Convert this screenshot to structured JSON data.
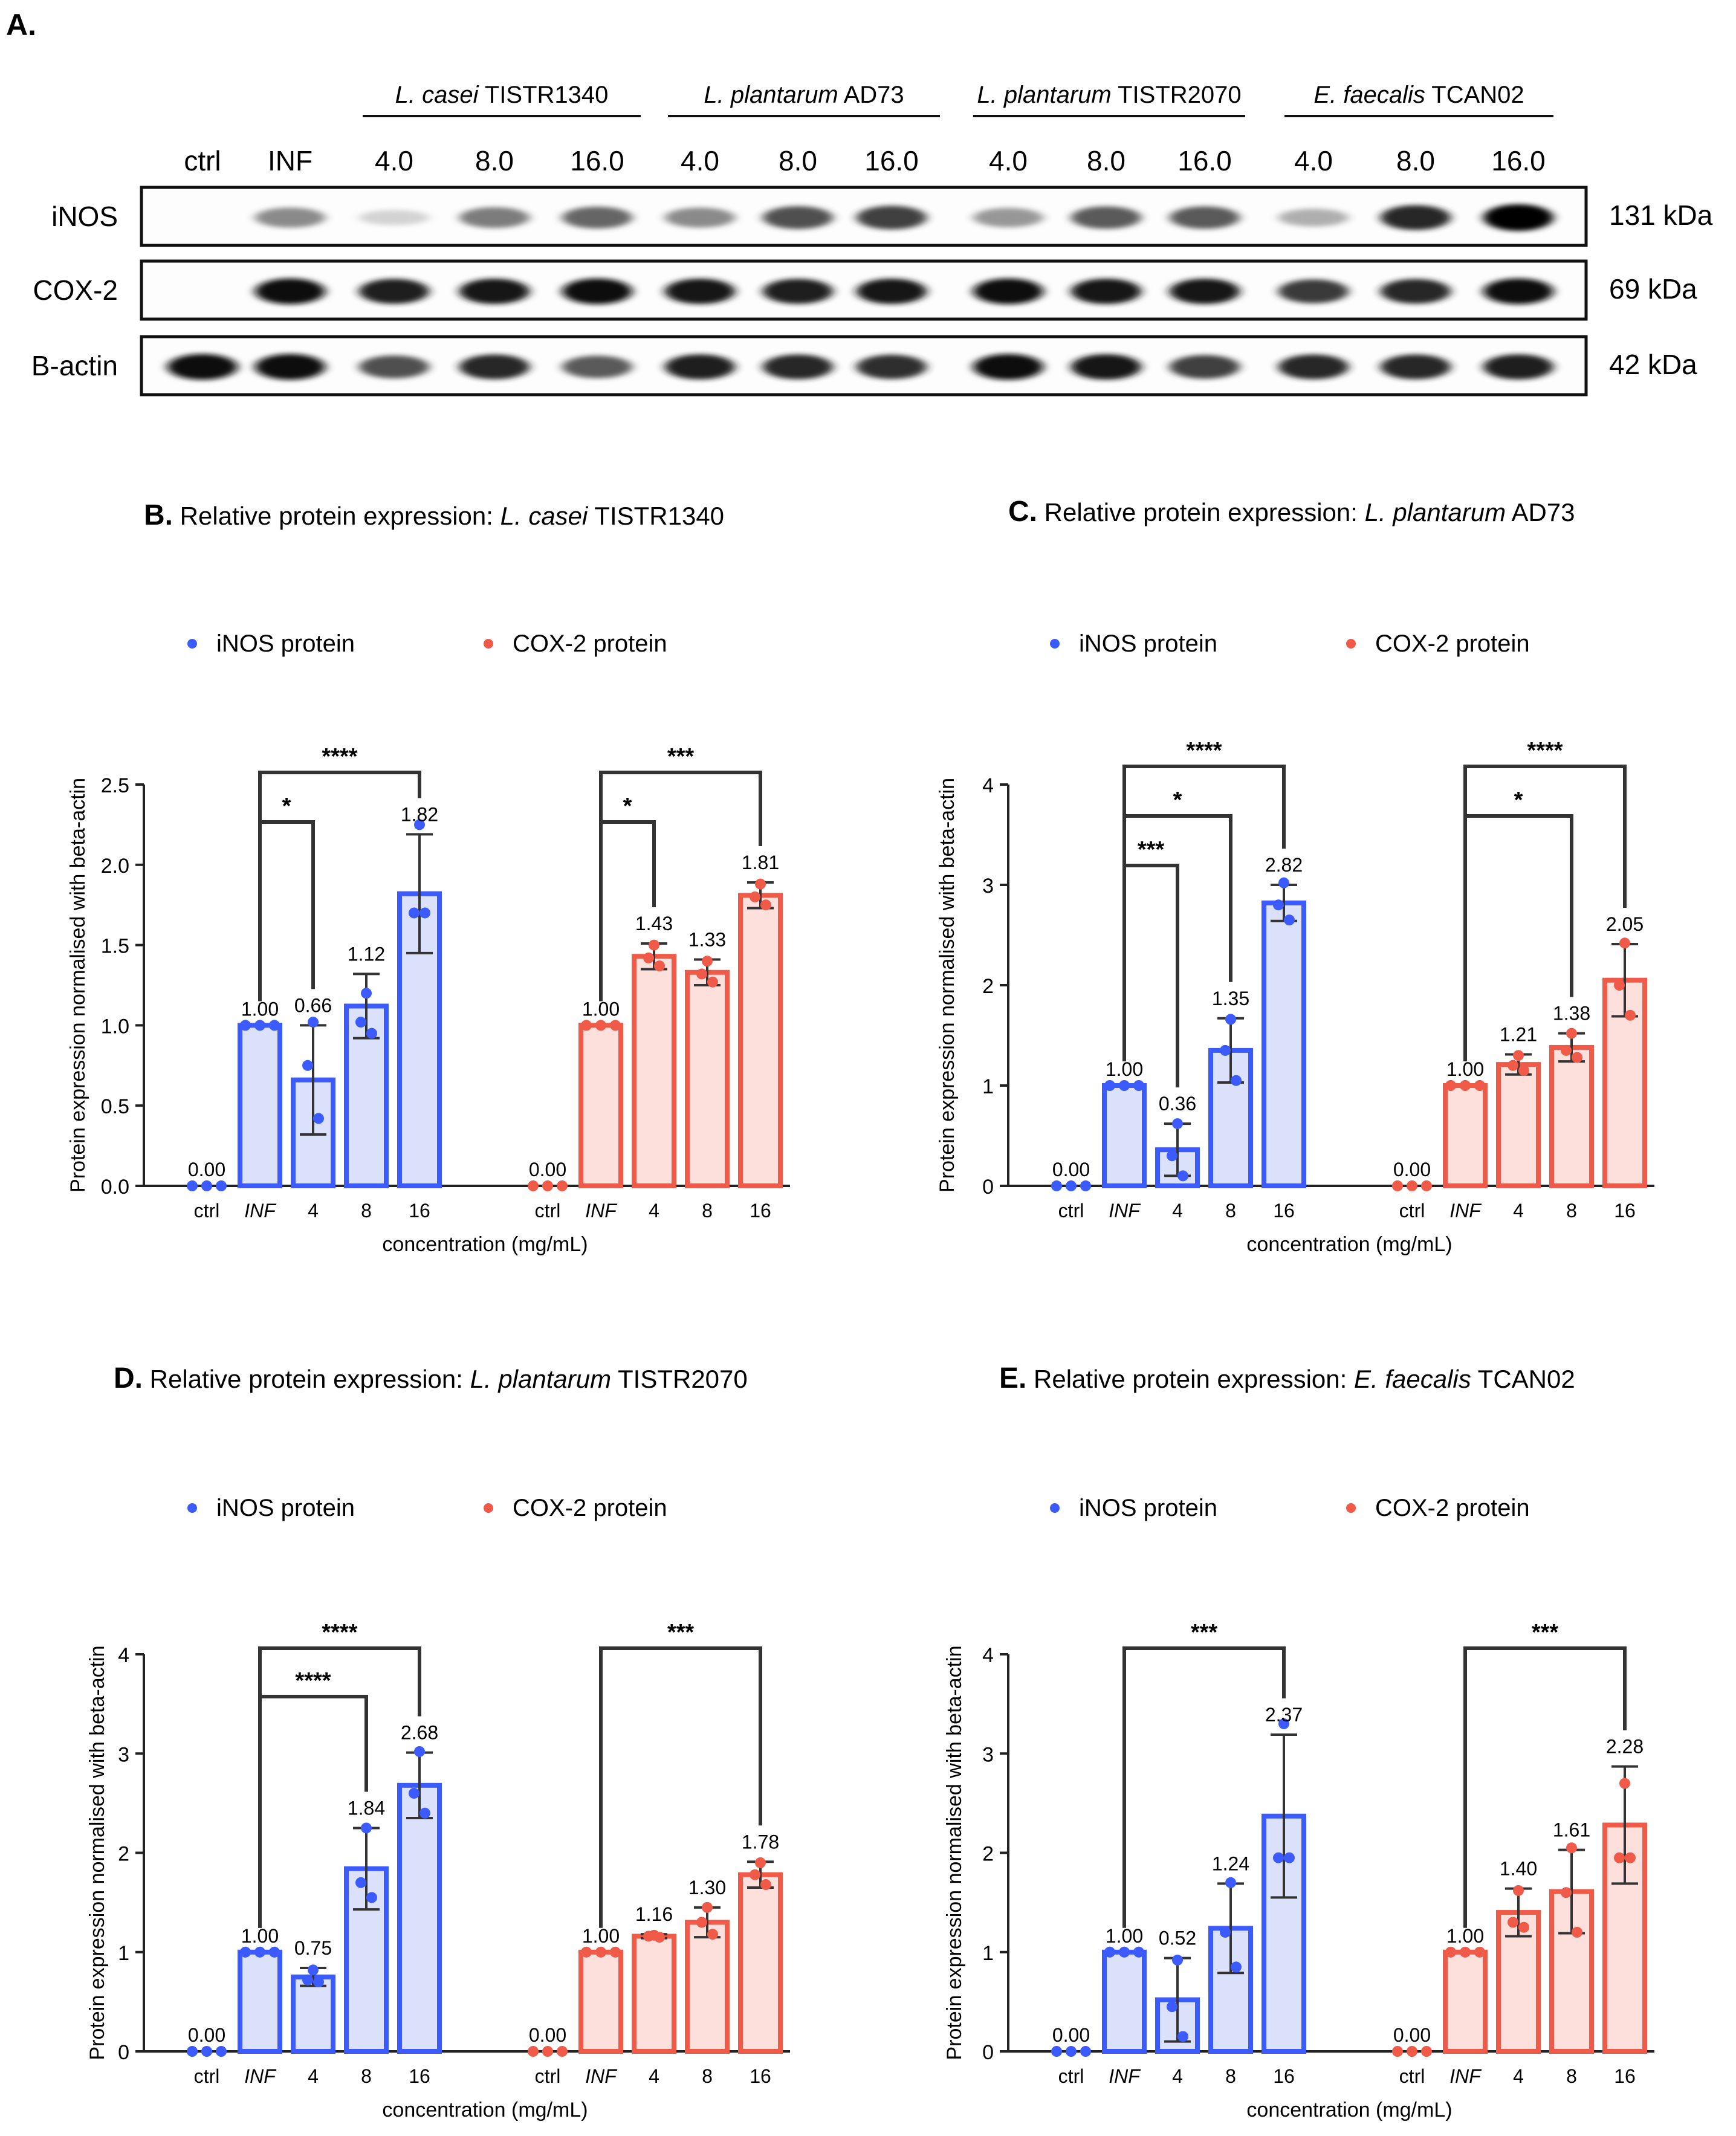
{
  "panel_a": {
    "label": "A.",
    "groups": [
      {
        "italic": "L. casei",
        "rest": " TISTR1340"
      },
      {
        "italic": "L. plantarum",
        "rest": " AD73"
      },
      {
        "italic": "L. plantarum",
        "rest": " TISTR2070"
      },
      {
        "italic": "E. faecalis",
        "rest": " TCAN02"
      }
    ],
    "lanes": [
      "ctrl",
      "INF",
      "4.0",
      "8.0",
      "16.0",
      "4.0",
      "8.0",
      "16.0",
      "4.0",
      "8.0",
      "16.0",
      "4.0",
      "8.0",
      "16.0"
    ],
    "blots": [
      {
        "name": "iNOS",
        "size": "131 kDa",
        "intensity": [
          0,
          0.55,
          0.22,
          0.6,
          0.68,
          0.55,
          0.75,
          0.8,
          0.5,
          0.72,
          0.72,
          0.4,
          0.88,
          1.0
        ]
      },
      {
        "name": "COX-2",
        "size": "69 kDa",
        "intensity": [
          0,
          0.95,
          0.9,
          0.92,
          0.95,
          0.92,
          0.9,
          0.92,
          0.95,
          0.92,
          0.92,
          0.82,
          0.88,
          0.95
        ]
      },
      {
        "name": "B-actin",
        "size": "42 kDa",
        "intensity": [
          0.95,
          0.95,
          0.75,
          0.88,
          0.72,
          0.9,
          0.88,
          0.85,
          0.95,
          0.92,
          0.8,
          0.88,
          0.88,
          0.9
        ]
      }
    ]
  },
  "legend": {
    "inos": "iNOS protein",
    "cox": "COX-2 protein"
  },
  "colors": {
    "inos": "#3b5bff",
    "inos_fill": "#dbe1fb",
    "cox": "#f05a48",
    "cox_fill": "#fde0dc",
    "axis": "#222222",
    "bracket": "#333333"
  },
  "chart_data": [
    {
      "panel": "B.",
      "title_prefix": "Relative protein expression: ",
      "title_italic": "L. casei",
      "title_suffix": " TISTR1340",
      "type": "bar",
      "ylabel": "Protein expression normalised with beta-actin",
      "xlabel": "concentration (mg/mL)",
      "ylim": [
        0,
        2.5
      ],
      "yticks": [
        "0.0",
        "0.5",
        "1.0",
        "1.5",
        "2.0",
        "2.5"
      ],
      "categories": [
        "ctrl",
        "INF",
        "4",
        "8",
        "16"
      ],
      "series": [
        {
          "name": "iNOS protein",
          "values": [
            0,
            1.0,
            0.66,
            1.12,
            1.82
          ],
          "labels": [
            "0.00",
            "1.00",
            "0.66",
            "1.12",
            "1.82"
          ],
          "err": [
            0,
            0,
            0.34,
            0.2,
            0.37
          ],
          "points": [
            [
              0,
              0,
              0
            ],
            [
              1,
              1,
              1
            ],
            [
              1.02,
              0.75,
              0.42
            ],
            [
              1.2,
              1.02,
              0.95
            ],
            [
              2.25,
              1.7,
              1.7
            ]
          ]
        },
        {
          "name": "COX-2 protein",
          "values": [
            0,
            1.0,
            1.43,
            1.33,
            1.81
          ],
          "labels": [
            "0.00",
            "1.00",
            "1.43",
            "1.33",
            "1.81"
          ],
          "err": [
            0,
            0,
            0.08,
            0.08,
            0.08
          ],
          "points": [
            [
              0,
              0,
              0
            ],
            [
              1,
              1,
              1
            ],
            [
              1.5,
              1.42,
              1.37
            ],
            [
              1.4,
              1.32,
              1.27
            ],
            [
              1.88,
              1.8,
              1.75
            ]
          ]
        }
      ],
      "brackets": [
        {
          "series": 0,
          "from": 1,
          "to": 2,
          "level": 0,
          "label": "*"
        },
        {
          "series": 0,
          "from": 1,
          "to": 4,
          "level": 1,
          "label": "****"
        },
        {
          "series": 1,
          "from": 1,
          "to": 2,
          "level": 0,
          "label": "*"
        },
        {
          "series": 1,
          "from": 1,
          "to": 4,
          "level": 1,
          "label": "***"
        }
      ]
    },
    {
      "panel": "C.",
      "title_prefix": "Relative protein expression: ",
      "title_italic": "L. plantarum",
      "title_suffix": " AD73",
      "type": "bar",
      "ylabel": "Protein expression normalised with beta-actin",
      "xlabel": "concentration (mg/mL)",
      "ylim": [
        0,
        4
      ],
      "yticks": [
        "0",
        "1",
        "2",
        "3",
        "4"
      ],
      "categories": [
        "ctrl",
        "INF",
        "4",
        "8",
        "16"
      ],
      "series": [
        {
          "name": "iNOS protein",
          "values": [
            0,
            1.0,
            0.36,
            1.35,
            2.82
          ],
          "labels": [
            "0.00",
            "1.00",
            "0.36",
            "1.35",
            "2.82"
          ],
          "err": [
            0,
            0,
            0.26,
            0.32,
            0.18
          ],
          "points": [
            [
              0,
              0,
              0
            ],
            [
              1,
              1,
              1
            ],
            [
              0.62,
              0.3,
              0.1
            ],
            [
              1.66,
              1.35,
              1.05
            ],
            [
              3.02,
              2.8,
              2.65
            ]
          ]
        },
        {
          "name": "COX-2 protein",
          "values": [
            0,
            1.0,
            1.21,
            1.38,
            2.05
          ],
          "labels": [
            "0.00",
            "1.00",
            "1.21",
            "1.38",
            "2.05"
          ],
          "err": [
            0,
            0,
            0.1,
            0.14,
            0.36
          ],
          "points": [
            [
              0,
              0,
              0
            ],
            [
              1,
              1,
              1
            ],
            [
              1.3,
              1.2,
              1.15
            ],
            [
              1.52,
              1.35,
              1.28
            ],
            [
              2.42,
              2.0,
              1.7
            ]
          ]
        }
      ],
      "brackets": [
        {
          "series": 0,
          "from": 1,
          "to": 2,
          "level": 0,
          "label": "***"
        },
        {
          "series": 0,
          "from": 1,
          "to": 3,
          "level": 1,
          "label": "*"
        },
        {
          "series": 0,
          "from": 1,
          "to": 4,
          "level": 2,
          "label": "****"
        },
        {
          "series": 1,
          "from": 1,
          "to": 3,
          "level": 0,
          "label": "*"
        },
        {
          "series": 1,
          "from": 1,
          "to": 4,
          "level": 1,
          "label": "****"
        }
      ]
    },
    {
      "panel": "D.",
      "title_prefix": "Relative protein expression: ",
      "title_italic": "L. plantarum",
      "title_suffix": " TISTR2070",
      "type": "bar",
      "ylabel": "Protein expression normalised with beta-actin",
      "xlabel": "concentration (mg/mL)",
      "ylim": [
        0,
        4
      ],
      "yticks": [
        "0",
        "1",
        "2",
        "3",
        "4"
      ],
      "categories": [
        "ctrl",
        "INF",
        "4",
        "8",
        "16"
      ],
      "series": [
        {
          "name": "iNOS protein",
          "values": [
            0,
            1.0,
            0.75,
            1.84,
            2.68
          ],
          "labels": [
            "0.00",
            "1.00",
            "0.75",
            "1.84",
            "2.68"
          ],
          "err": [
            0,
            0,
            0.09,
            0.41,
            0.33
          ],
          "points": [
            [
              0,
              0,
              0
            ],
            [
              1,
              1,
              1
            ],
            [
              0.82,
              0.72,
              0.7
            ],
            [
              2.25,
              1.7,
              1.55
            ],
            [
              3.02,
              2.6,
              2.4
            ]
          ]
        },
        {
          "name": "COX-2 protein",
          "values": [
            0,
            1.0,
            1.16,
            1.3,
            1.78
          ],
          "labels": [
            "0.00",
            "1.00",
            "1.16",
            "1.30",
            "1.78"
          ],
          "err": [
            0,
            0,
            0.02,
            0.15,
            0.13
          ],
          "points": [
            [
              0,
              0,
              0
            ],
            [
              1,
              1,
              1
            ],
            [
              1.17,
              1.16,
              1.15
            ],
            [
              1.45,
              1.3,
              1.18
            ],
            [
              1.9,
              1.78,
              1.68
            ]
          ]
        }
      ],
      "brackets": [
        {
          "series": 0,
          "from": 1,
          "to": 3,
          "level": 0,
          "label": "****"
        },
        {
          "series": 0,
          "from": 1,
          "to": 4,
          "level": 1,
          "label": "****"
        },
        {
          "series": 1,
          "from": 1,
          "to": 4,
          "level": 0,
          "label": "***"
        }
      ]
    },
    {
      "panel": "E.",
      "title_prefix": "Relative protein expression: ",
      "title_italic": "E. faecalis",
      "title_suffix": " TCAN02",
      "type": "bar",
      "ylabel": "Protein expression normalised with beta-actin",
      "xlabel": "concentration (mg/mL)",
      "ylim": [
        0,
        4
      ],
      "yticks": [
        "0",
        "1",
        "2",
        "3",
        "4"
      ],
      "categories": [
        "ctrl",
        "INF",
        "4",
        "8",
        "16"
      ],
      "series": [
        {
          "name": "iNOS protein",
          "values": [
            0,
            1.0,
            0.52,
            1.24,
            2.37
          ],
          "labels": [
            "0.00",
            "1.00",
            "0.52",
            "1.24",
            "2.37"
          ],
          "err": [
            0,
            0,
            0.42,
            0.45,
            0.82
          ],
          "points": [
            [
              0,
              0,
              0
            ],
            [
              1,
              1,
              1
            ],
            [
              0.92,
              0.45,
              0.15
            ],
            [
              1.7,
              1.2,
              0.85
            ],
            [
              3.3,
              1.95,
              1.95
            ]
          ]
        },
        {
          "name": "COX-2 protein",
          "values": [
            0,
            1.0,
            1.4,
            1.61,
            2.28
          ],
          "labels": [
            "0.00",
            "1.00",
            "1.40",
            "1.61",
            "2.28"
          ],
          "err": [
            0,
            0,
            0.24,
            0.42,
            0.59
          ],
          "points": [
            [
              0,
              0,
              0
            ],
            [
              1,
              1,
              1
            ],
            [
              1.62,
              1.3,
              1.25
            ],
            [
              2.05,
              1.6,
              1.2
            ],
            [
              2.7,
              1.95,
              1.95
            ]
          ]
        }
      ],
      "brackets": [
        {
          "series": 0,
          "from": 1,
          "to": 4,
          "level": 0,
          "label": "***"
        },
        {
          "series": 1,
          "from": 1,
          "to": 4,
          "level": 0,
          "label": "***"
        }
      ]
    }
  ]
}
